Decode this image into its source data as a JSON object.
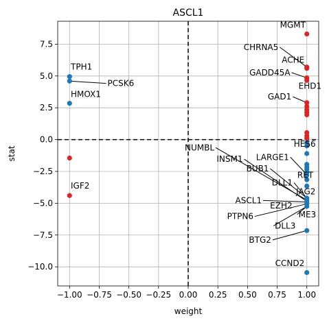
{
  "chart_data": {
    "type": "scatter",
    "title": "ASCL1",
    "xlabel": "weight",
    "ylabel": "stat",
    "xlim": [
      -1.1,
      1.1
    ],
    "ylim": [
      -11.5,
      9.3
    ],
    "xticks": [
      -1.0,
      -0.75,
      -0.5,
      -0.25,
      0.0,
      0.25,
      0.5,
      0.75,
      1.0
    ],
    "xtick_labels": [
      "−1.00",
      "−0.75",
      "−0.50",
      "−0.25",
      "0.00",
      "0.25",
      "0.50",
      "0.75",
      "1.00"
    ],
    "yticks": [
      -10.0,
      -7.5,
      -5.0,
      -2.5,
      0.0,
      2.5,
      5.0,
      7.5
    ],
    "ytick_labels": [
      "−10.0",
      "−7.5",
      "−5.0",
      "−2.5",
      "0.0",
      "2.5",
      "5.0",
      "7.5"
    ],
    "grid": true,
    "reference_lines": {
      "x": 0,
      "y": 0
    },
    "colors": {
      "positive": "#d62728",
      "negative": "#1f77b4"
    },
    "points": [
      {
        "x": -1.0,
        "y": 4.95,
        "color": "negative"
      },
      {
        "x": -1.0,
        "y": 4.6,
        "color": "negative"
      },
      {
        "x": -1.0,
        "y": 2.85,
        "color": "negative"
      },
      {
        "x": -1.0,
        "y": -1.45,
        "color": "positive"
      },
      {
        "x": -1.0,
        "y": -4.4,
        "color": "positive"
      },
      {
        "x": 1.0,
        "y": 8.3,
        "color": "positive"
      },
      {
        "x": 1.0,
        "y": 5.7,
        "color": "positive"
      },
      {
        "x": 1.0,
        "y": 5.6,
        "color": "positive"
      },
      {
        "x": 1.0,
        "y": 4.85,
        "color": "positive"
      },
      {
        "x": 1.0,
        "y": 4.65,
        "color": "positive"
      },
      {
        "x": 1.0,
        "y": 2.9,
        "color": "positive"
      },
      {
        "x": 1.0,
        "y": 2.6,
        "color": "positive"
      },
      {
        "x": 1.0,
        "y": 2.35,
        "color": "positive"
      },
      {
        "x": 1.0,
        "y": 2.15,
        "color": "positive"
      },
      {
        "x": 1.0,
        "y": 1.95,
        "color": "positive"
      },
      {
        "x": 1.0,
        "y": 0.55,
        "color": "positive"
      },
      {
        "x": 1.0,
        "y": 0.3,
        "color": "positive"
      },
      {
        "x": 1.0,
        "y": 0.1,
        "color": "positive"
      },
      {
        "x": 1.0,
        "y": -0.25,
        "color": "negative"
      },
      {
        "x": 1.0,
        "y": -0.5,
        "color": "negative"
      },
      {
        "x": 1.0,
        "y": -1.1,
        "color": "negative"
      },
      {
        "x": 1.0,
        "y": -1.95,
        "color": "negative"
      },
      {
        "x": 1.0,
        "y": -2.15,
        "color": "negative"
      },
      {
        "x": 1.0,
        "y": -2.35,
        "color": "negative"
      },
      {
        "x": 1.0,
        "y": -2.6,
        "color": "negative"
      },
      {
        "x": 1.0,
        "y": -2.8,
        "color": "negative"
      },
      {
        "x": 1.0,
        "y": -3.15,
        "color": "negative"
      },
      {
        "x": 1.0,
        "y": -3.65,
        "color": "negative"
      },
      {
        "x": 1.0,
        "y": -4.6,
        "color": "negative"
      },
      {
        "x": 1.0,
        "y": -4.75,
        "color": "negative"
      },
      {
        "x": 1.0,
        "y": -4.9,
        "color": "negative"
      },
      {
        "x": 1.0,
        "y": -5.05,
        "color": "negative"
      },
      {
        "x": 1.0,
        "y": -5.25,
        "color": "negative"
      },
      {
        "x": 1.0,
        "y": -7.15,
        "color": "negative"
      },
      {
        "x": 1.0,
        "y": -10.45,
        "color": "negative"
      }
    ],
    "annotations": [
      {
        "text": "TPH1",
        "px": -1.0,
        "py": 4.95,
        "tx": -0.99,
        "ty": 5.5,
        "anchor": "start",
        "leader": false
      },
      {
        "text": "PCSK6",
        "px": -1.0,
        "py": 4.6,
        "tx": -0.68,
        "ty": 4.2,
        "anchor": "start",
        "leader": true
      },
      {
        "text": "HMOX1",
        "px": -1.0,
        "py": 2.85,
        "tx": -0.99,
        "ty": 3.35,
        "anchor": "start",
        "leader": false
      },
      {
        "text": "IGF2",
        "px": -1.0,
        "py": -4.4,
        "tx": -0.99,
        "ty": -3.85,
        "anchor": "start",
        "leader": false
      },
      {
        "text": "MGMT",
        "px": 1.0,
        "py": 8.3,
        "tx": 0.99,
        "ty": 8.8,
        "anchor": "end",
        "leader": false
      },
      {
        "text": "CHRNA5",
        "px": 1.0,
        "py": 5.7,
        "tx": 0.76,
        "ty": 7.05,
        "anchor": "end",
        "leader": true
      },
      {
        "text": "ACHE",
        "px": 1.0,
        "py": 5.6,
        "tx": 0.98,
        "ty": 6.05,
        "anchor": "end",
        "leader": false
      },
      {
        "text": "GADD45A",
        "px": 1.0,
        "py": 4.85,
        "tx": 0.86,
        "ty": 5.05,
        "anchor": "end",
        "leader": true
      },
      {
        "text": "EHD1",
        "px": 1.0,
        "py": 4.65,
        "tx": 0.93,
        "ty": 4.0,
        "anchor": "start",
        "leader": false
      },
      {
        "text": "GAD1",
        "px": 1.0,
        "py": 2.9,
        "tx": 0.87,
        "ty": 3.15,
        "anchor": "end",
        "leader": true
      },
      {
        "text": "HES6",
        "px": 1.0,
        "py": -0.25,
        "tx": 0.89,
        "ty": -0.55,
        "anchor": "start",
        "leader": false
      },
      {
        "text": "NUMBL",
        "px": 1.0,
        "py": -4.75,
        "tx": 0.22,
        "ty": -0.85,
        "anchor": "end",
        "leader": true
      },
      {
        "text": "LARGE1",
        "px": 1.0,
        "py": -2.75,
        "tx": 0.85,
        "ty": -1.6,
        "anchor": "end",
        "leader": true
      },
      {
        "text": "INSM1",
        "px": 1.0,
        "py": -4.85,
        "tx": 0.46,
        "ty": -1.75,
        "anchor": "end",
        "leader": true
      },
      {
        "text": "BUB1",
        "px": 1.0,
        "py": -4.6,
        "tx": 0.68,
        "ty": -2.5,
        "anchor": "end",
        "leader": true
      },
      {
        "text": "RET",
        "px": 1.0,
        "py": -3.15,
        "tx": 0.92,
        "ty": -3.0,
        "anchor": "start",
        "leader": false
      },
      {
        "text": "DLL1",
        "px": 1.0,
        "py": -4.6,
        "tx": 0.88,
        "ty": -3.6,
        "anchor": "end",
        "leader": true
      },
      {
        "text": "JAG2",
        "px": 1.0,
        "py": -4.75,
        "tx": 0.91,
        "ty": -4.3,
        "anchor": "start",
        "leader": false
      },
      {
        "text": "ASCL1",
        "px": 1.0,
        "py": -4.9,
        "tx": 0.62,
        "ty": -5.0,
        "anchor": "end",
        "leader": true
      },
      {
        "text": "EZH2",
        "px": 1.0,
        "py": -5.05,
        "tx": 0.69,
        "ty": -5.4,
        "anchor": "start",
        "leader": false
      },
      {
        "text": "ME3",
        "px": 1.0,
        "py": -5.25,
        "tx": 0.93,
        "ty": -6.1,
        "anchor": "start",
        "leader": true
      },
      {
        "text": "PTPN6",
        "px": 1.0,
        "py": -5.05,
        "tx": 0.55,
        "ty": -6.25,
        "anchor": "end",
        "leader": true
      },
      {
        "text": "DLL3",
        "px": 1.0,
        "py": -5.25,
        "tx": 0.73,
        "ty": -7.0,
        "anchor": "start",
        "leader": true
      },
      {
        "text": "BTG2",
        "px": 1.0,
        "py": -7.15,
        "tx": 0.7,
        "ty": -8.1,
        "anchor": "end",
        "leader": true
      },
      {
        "text": "CCND2",
        "px": 1.0,
        "py": -10.45,
        "tx": 0.98,
        "ty": -9.95,
        "anchor": "end",
        "leader": false
      }
    ]
  }
}
